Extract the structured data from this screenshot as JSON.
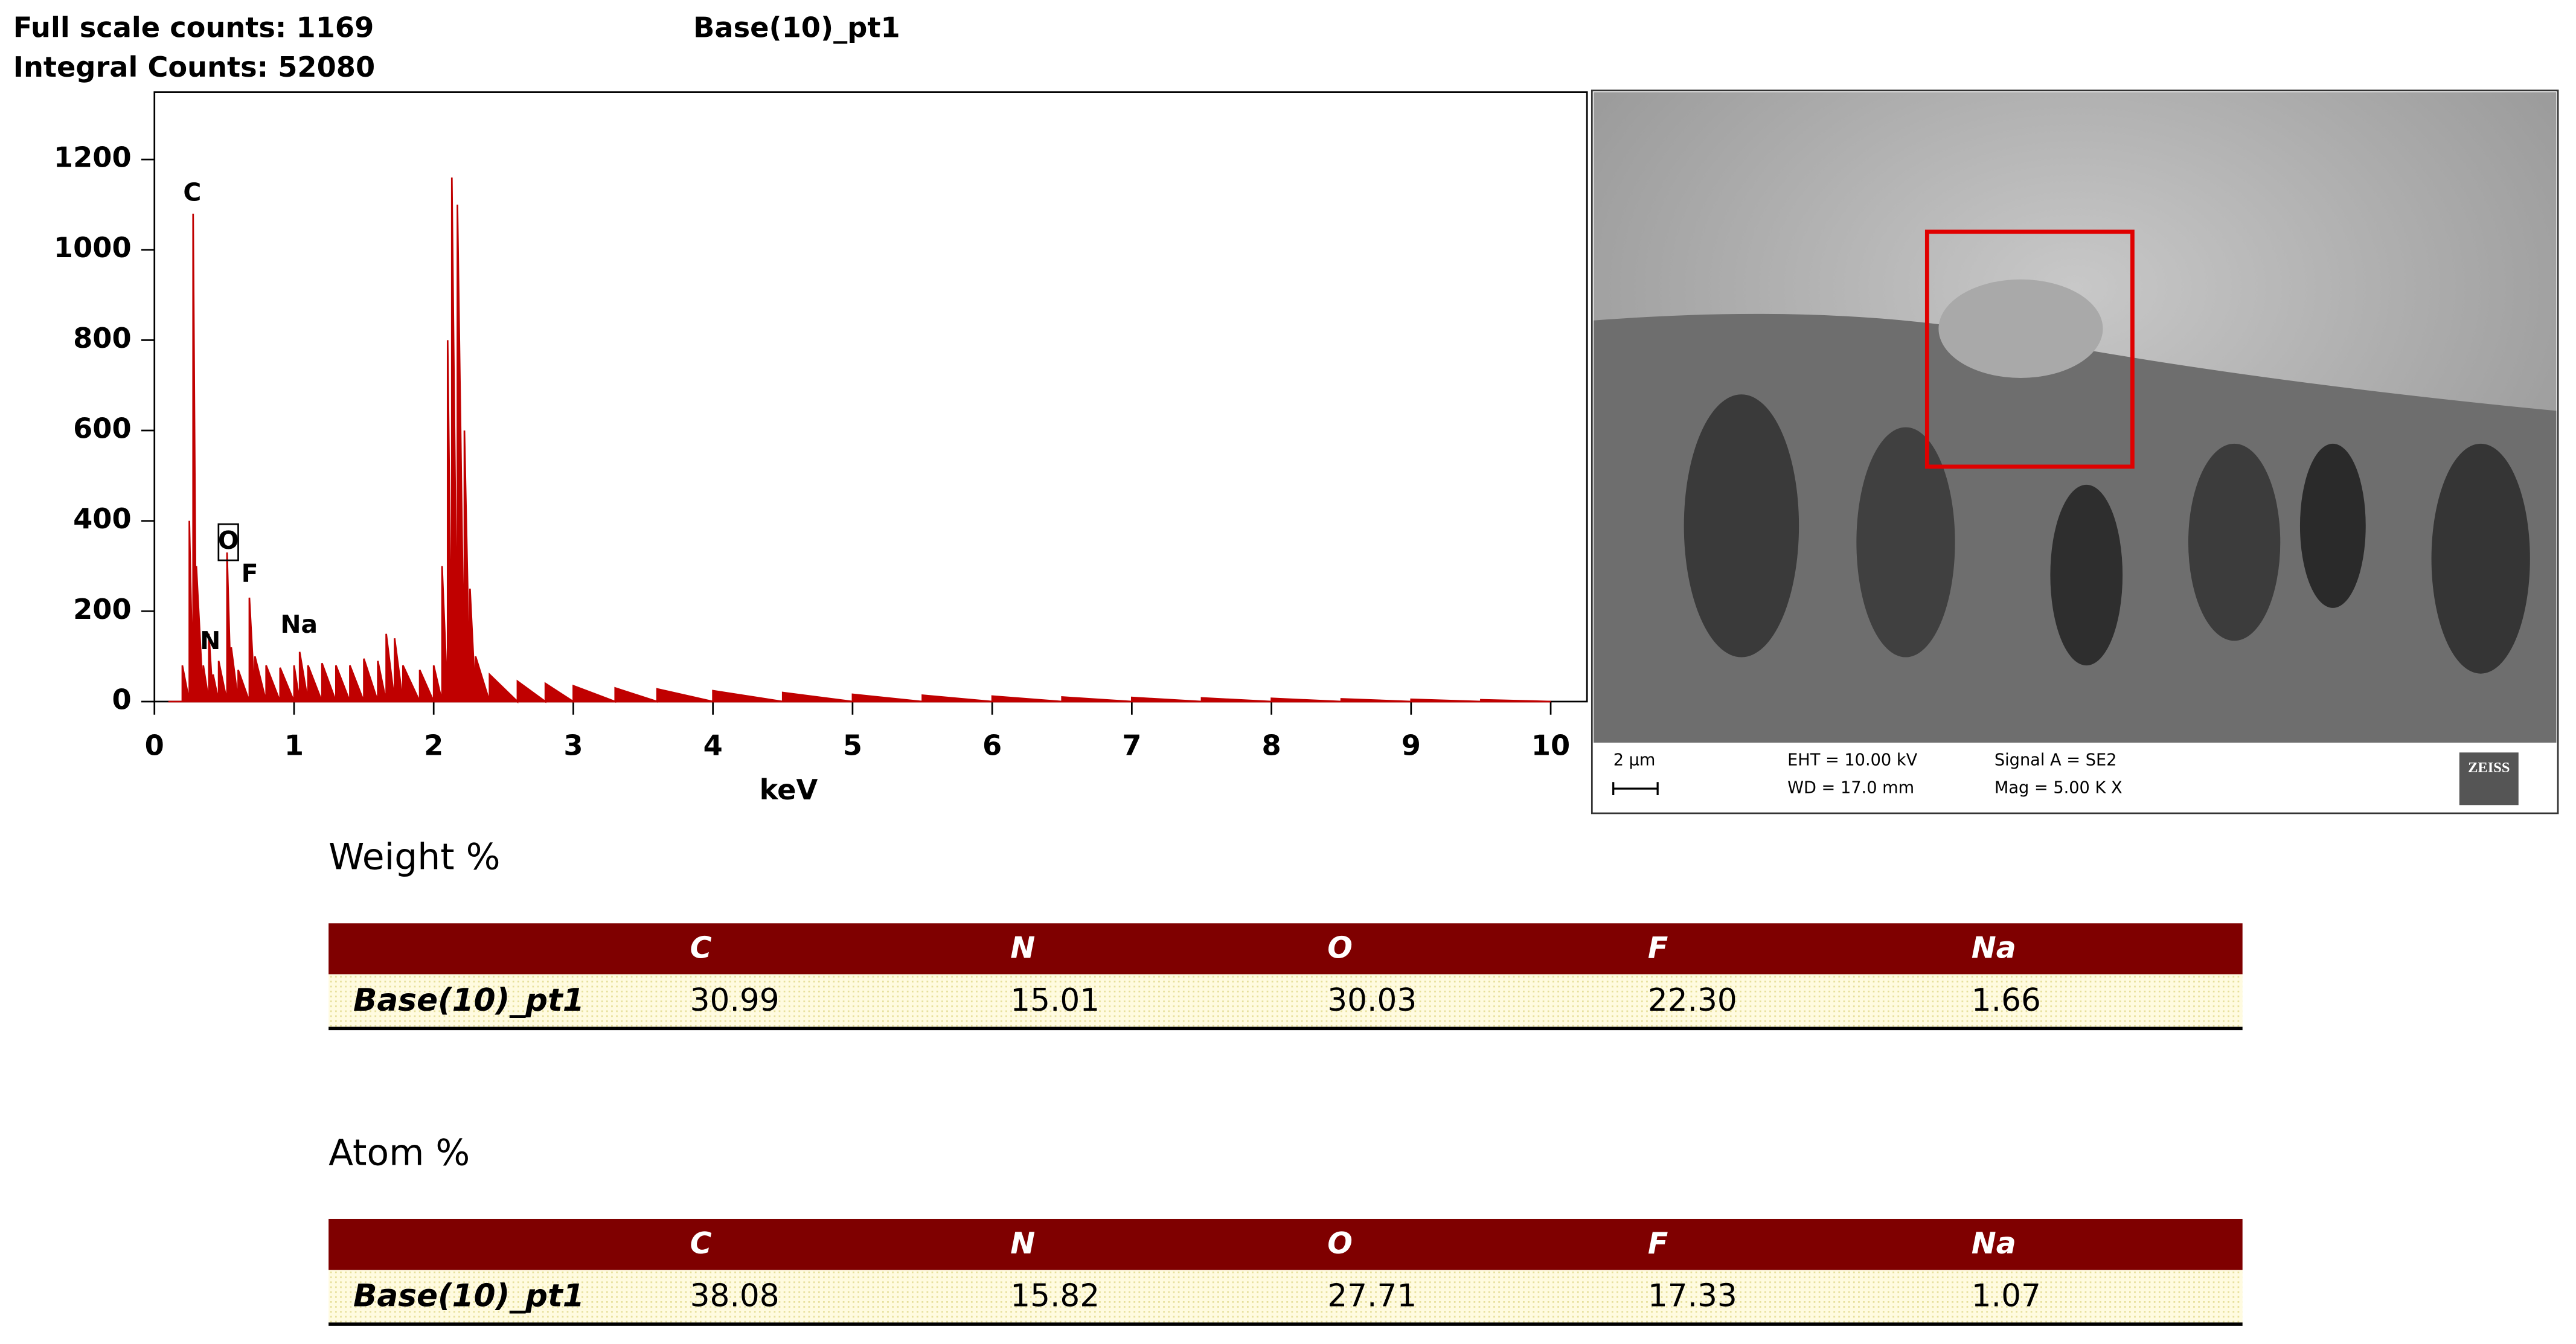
{
  "header": {
    "full_scale": "Full scale counts: 1169",
    "integral": "Integral Counts: 52080",
    "title": "Base(10)_pt1"
  },
  "chart_data": {
    "type": "area",
    "x_label": "keV",
    "color": "#c00000",
    "peak_labels": [
      "C",
      "N",
      "O",
      "F",
      "Na"
    ],
    "x": [
      0.1,
      0.2,
      0.25,
      0.277,
      0.3,
      0.35,
      0.39,
      0.42,
      0.46,
      0.52,
      0.55,
      0.6,
      0.68,
      0.72,
      0.8,
      0.9,
      1.0,
      1.04,
      1.1,
      1.2,
      1.3,
      1.4,
      1.5,
      1.6,
      1.66,
      1.72,
      1.78,
      1.9,
      2.0,
      2.06,
      2.1,
      2.13,
      2.17,
      2.22,
      2.26,
      2.3,
      2.4,
      2.6,
      2.8,
      3.0,
      3.3,
      3.6,
      4.0,
      4.5,
      5.0,
      5.5,
      6.0,
      6.5,
      7.0,
      7.5,
      8.0,
      8.5,
      9.0,
      9.5,
      10.0
    ],
    "values": [
      0,
      80,
      400,
      1080,
      300,
      80,
      150,
      60,
      90,
      330,
      120,
      70,
      230,
      100,
      80,
      75,
      80,
      110,
      80,
      85,
      80,
      80,
      95,
      90,
      150,
      140,
      80,
      70,
      80,
      300,
      800,
      1160,
      1100,
      600,
      250,
      100,
      60,
      45,
      40,
      35,
      30,
      28,
      24,
      20,
      16,
      14,
      12,
      10,
      9,
      8,
      7,
      6,
      5,
      4,
      0
    ],
    "xlim": [
      0,
      10.26
    ],
    "ylim": [
      0,
      1349
    ],
    "xticks": [
      0,
      1,
      2,
      3,
      4,
      5,
      6,
      7,
      8,
      9,
      10
    ],
    "yticks": [
      0,
      200,
      400,
      600,
      800,
      1000,
      1200
    ]
  },
  "sem": {
    "scale": "2 µm",
    "eht": "EHT = 10.00 kV",
    "wd": "WD = 17.0 mm",
    "signal": "Signal A = SE2",
    "mag": "Mag =   5.00 K X",
    "brand": "ZEISS"
  },
  "tables": [
    {
      "title": "Weight %",
      "columns": [
        "C",
        "N",
        "O",
        "F",
        "Na"
      ],
      "rows": [
        [
          "Base(10)_pt1",
          "30.99",
          "15.01",
          "30.03",
          "22.30",
          "1.66"
        ]
      ]
    },
    {
      "title": "Atom %",
      "columns": [
        "C",
        "N",
        "O",
        "F",
        "Na"
      ],
      "rows": [
        [
          "Base(10)_pt1",
          "38.08",
          "15.82",
          "27.71",
          "17.33",
          "1.07"
        ]
      ]
    }
  ]
}
